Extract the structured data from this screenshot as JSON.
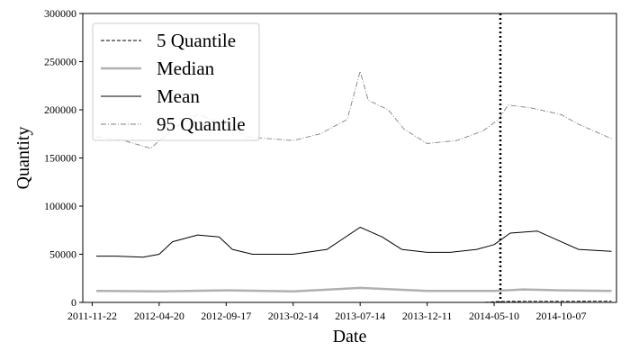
{
  "chart_data": {
    "type": "line",
    "xlabel": "Date",
    "ylabel": "Quantity",
    "x_ticks": [
      "2011-11-22",
      "2012-04-20",
      "2012-09-17",
      "2013-02-14",
      "2013-07-14",
      "2013-12-11",
      "2014-05-10",
      "2014-10-07"
    ],
    "x_range": [
      "2011-11-01",
      "2015-02-08"
    ],
    "y_ticks": [
      0,
      50000,
      100000,
      150000,
      200000,
      250000,
      300000
    ],
    "ylim": [
      0,
      300000
    ],
    "vline_date": "2014-05-24",
    "legend_position": "upper left",
    "series": [
      {
        "name": "5 Quantile",
        "style": "dashed",
        "color": "#000000",
        "points": [
          [
            "2011-12-01",
            0
          ],
          [
            "2014-04-15",
            0
          ],
          [
            "2014-05-24",
            1000
          ],
          [
            "2015-01-28",
            1200
          ]
        ]
      },
      {
        "name": "Median",
        "style": "solid-thick",
        "color": "#b0b0b0",
        "points": [
          [
            "2011-12-01",
            12000
          ],
          [
            "2012-04-20",
            11500
          ],
          [
            "2012-09-17",
            12500
          ],
          [
            "2013-02-14",
            11500
          ],
          [
            "2013-07-14",
            15000
          ],
          [
            "2013-12-11",
            12000
          ],
          [
            "2014-05-10",
            12000
          ],
          [
            "2014-07-15",
            13500
          ],
          [
            "2014-10-07",
            12500
          ],
          [
            "2015-01-28",
            12000
          ]
        ]
      },
      {
        "name": "Mean",
        "style": "solid",
        "color": "#000000",
        "points": [
          [
            "2011-12-01",
            48000
          ],
          [
            "2012-01-15",
            48000
          ],
          [
            "2012-03-15",
            47000
          ],
          [
            "2012-04-20",
            50000
          ],
          [
            "2012-05-20",
            63000
          ],
          [
            "2012-07-15",
            70000
          ],
          [
            "2012-09-01",
            68000
          ],
          [
            "2012-10-01",
            55000
          ],
          [
            "2012-11-15",
            50000
          ],
          [
            "2013-02-14",
            50000
          ],
          [
            "2013-05-01",
            55000
          ],
          [
            "2013-07-14",
            78000
          ],
          [
            "2013-09-01",
            68000
          ],
          [
            "2013-10-15",
            55000
          ],
          [
            "2013-12-11",
            52000
          ],
          [
            "2014-02-01",
            52000
          ],
          [
            "2014-04-01",
            55000
          ],
          [
            "2014-05-10",
            60000
          ],
          [
            "2014-06-15",
            72000
          ],
          [
            "2014-08-15",
            74000
          ],
          [
            "2014-10-07",
            63000
          ],
          [
            "2014-11-15",
            55000
          ],
          [
            "2015-01-28",
            53000
          ]
        ]
      },
      {
        "name": "95 Quantile",
        "style": "dashdot",
        "color": "#808080",
        "points": [
          [
            "2011-12-01",
            172000
          ],
          [
            "2012-02-01",
            168000
          ],
          [
            "2012-04-01",
            160000
          ],
          [
            "2012-05-20",
            180000
          ],
          [
            "2012-07-15",
            195000
          ],
          [
            "2012-09-17",
            185000
          ],
          [
            "2012-11-01",
            172000
          ],
          [
            "2013-02-14",
            168000
          ],
          [
            "2013-04-15",
            175000
          ],
          [
            "2013-06-15",
            190000
          ],
          [
            "2013-07-14",
            240000
          ],
          [
            "2013-08-01",
            210000
          ],
          [
            "2013-09-15",
            200000
          ],
          [
            "2013-10-20",
            180000
          ],
          [
            "2013-12-11",
            165000
          ],
          [
            "2014-02-15",
            168000
          ],
          [
            "2014-04-15",
            178000
          ],
          [
            "2014-05-20",
            190000
          ],
          [
            "2014-06-10",
            205000
          ],
          [
            "2014-08-01",
            202000
          ],
          [
            "2014-10-07",
            195000
          ],
          [
            "2014-11-15",
            185000
          ],
          [
            "2015-01-28",
            170000
          ]
        ]
      }
    ]
  }
}
